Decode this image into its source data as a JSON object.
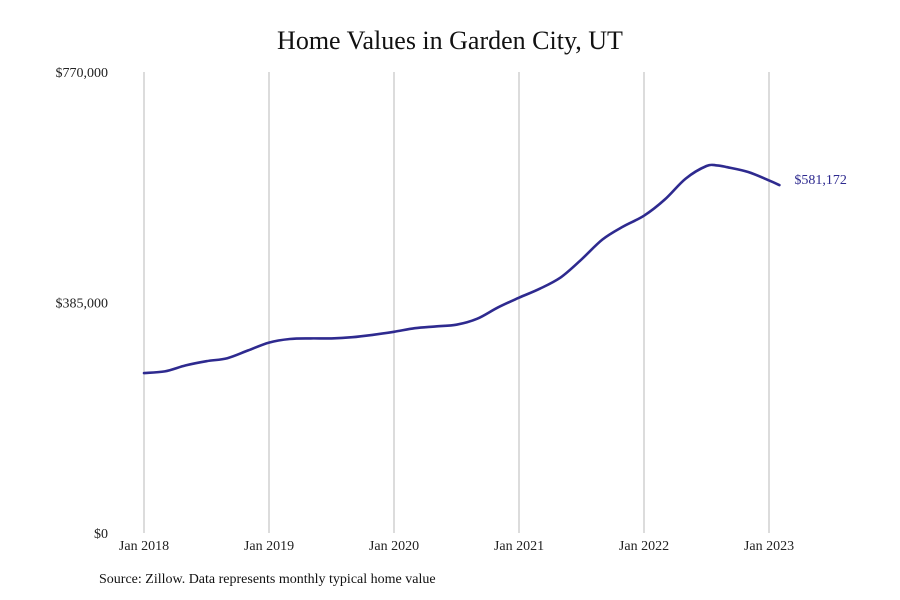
{
  "chart_data": {
    "type": "line",
    "title": "Home Values in Garden City, UT",
    "xlabel": "",
    "ylabel": "",
    "x_ticks": [
      "Jan 2018",
      "Jan 2019",
      "Jan 2020",
      "Jan 2021",
      "Jan 2022",
      "Jan 2023"
    ],
    "y_ticks": [
      "$0",
      "$385,000",
      "$770,000"
    ],
    "y_tick_values": [
      0,
      385000,
      770000
    ],
    "ylim": [
      0,
      770000
    ],
    "xlim": [
      "2018-01",
      "2023-06"
    ],
    "grid": "vertical lines at each January",
    "legend": "none",
    "end_label": "$581,172",
    "series": [
      {
        "color": "#2e2a8f",
        "points": [
          {
            "date": "2018-01",
            "value": 267000
          },
          {
            "date": "2018-03",
            "value": 270000
          },
          {
            "date": "2018-05",
            "value": 280000
          },
          {
            "date": "2018-07",
            "value": 287000
          },
          {
            "date": "2018-09",
            "value": 292000
          },
          {
            "date": "2018-11",
            "value": 305000
          },
          {
            "date": "2019-01",
            "value": 318000
          },
          {
            "date": "2019-03",
            "value": 324000
          },
          {
            "date": "2019-05",
            "value": 325000
          },
          {
            "date": "2019-07",
            "value": 325000
          },
          {
            "date": "2019-09",
            "value": 327000
          },
          {
            "date": "2019-11",
            "value": 331000
          },
          {
            "date": "2020-01",
            "value": 336000
          },
          {
            "date": "2020-03",
            "value": 342000
          },
          {
            "date": "2020-05",
            "value": 345000
          },
          {
            "date": "2020-07",
            "value": 348000
          },
          {
            "date": "2020-09",
            "value": 358000
          },
          {
            "date": "2020-11",
            "value": 377000
          },
          {
            "date": "2021-01",
            "value": 393000
          },
          {
            "date": "2021-03",
            "value": 408000
          },
          {
            "date": "2021-05",
            "value": 427000
          },
          {
            "date": "2021-07",
            "value": 457000
          },
          {
            "date": "2021-09",
            "value": 490000
          },
          {
            "date": "2021-11",
            "value": 512000
          },
          {
            "date": "2022-01",
            "value": 530000
          },
          {
            "date": "2022-03",
            "value": 557000
          },
          {
            "date": "2022-05",
            "value": 592000
          },
          {
            "date": "2022-07",
            "value": 613000
          },
          {
            "date": "2022-08",
            "value": 614000
          },
          {
            "date": "2022-09",
            "value": 611000
          },
          {
            "date": "2022-11",
            "value": 603000
          },
          {
            "date": "2023-01",
            "value": 589000
          },
          {
            "date": "2023-02",
            "value": 581172
          }
        ]
      }
    ]
  },
  "source_note": "Source: Zillow. Data represents monthly typical home value"
}
